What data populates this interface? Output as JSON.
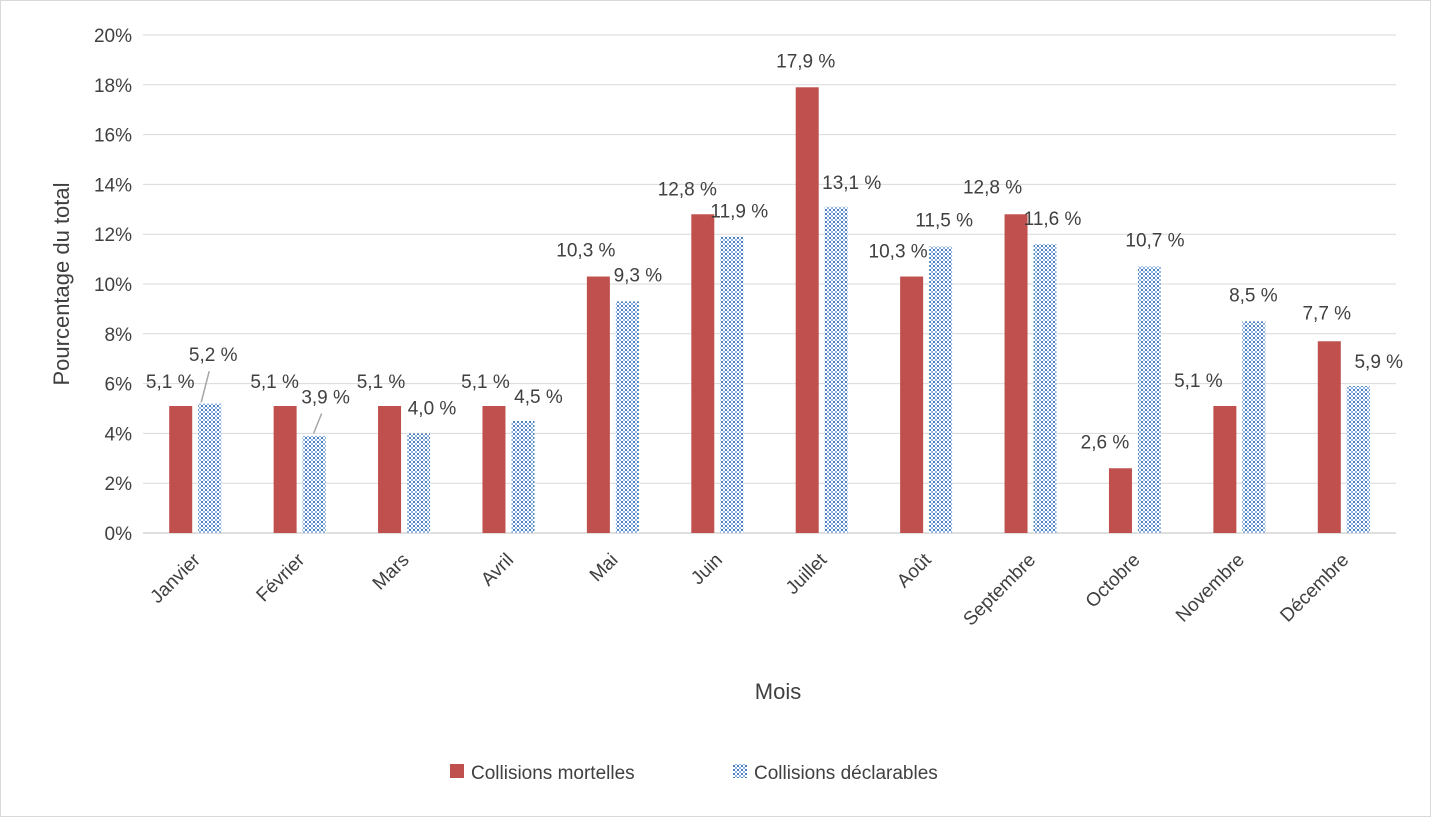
{
  "chart_data": {
    "type": "bar",
    "title": "",
    "xlabel": "Mois",
    "ylabel": "Pourcentage du total",
    "ylim": [
      0,
      20
    ],
    "y_ticks": [
      "0%",
      "2%",
      "4%",
      "6%",
      "8%",
      "10%",
      "12%",
      "14%",
      "16%",
      "18%",
      "20%"
    ],
    "grid": true,
    "legend_position": "bottom",
    "categories": [
      "Janvier",
      "Février",
      "Mars",
      "Avril",
      "Mai",
      "Juin",
      "Juillet",
      "Août",
      "Septembre",
      "Octobre",
      "Novembre",
      "Décembre"
    ],
    "series": [
      {
        "name": "Collisions mortelles",
        "color": "#c0504d",
        "pattern": "solid",
        "values": [
          5.1,
          5.1,
          5.1,
          5.1,
          10.3,
          12.8,
          17.9,
          10.3,
          12.8,
          2.6,
          5.1,
          7.7
        ],
        "labels": [
          "5,1 %",
          "5,1 %",
          "5,1 %",
          "5,1 %",
          "10,3 %",
          "12,8 %",
          "17,9 %",
          "10,3 %",
          "12,8 %",
          "2,6 %",
          "5,1 %",
          "7,7 %"
        ]
      },
      {
        "name": "Collisions déclarables",
        "color": "#4f81bd",
        "pattern": "dotted",
        "values": [
          5.2,
          3.9,
          4.0,
          4.5,
          9.3,
          11.9,
          13.1,
          11.5,
          11.6,
          10.7,
          8.5,
          5.9
        ],
        "labels": [
          "5,2 %",
          "3,9 %",
          "4,0 %",
          "4,5 %",
          "9,3 %",
          "11,9 %",
          "13,1 %",
          "11,5 %",
          "11,6 %",
          "10,7 %",
          "8,5 %",
          "5,9 %"
        ]
      }
    ]
  }
}
